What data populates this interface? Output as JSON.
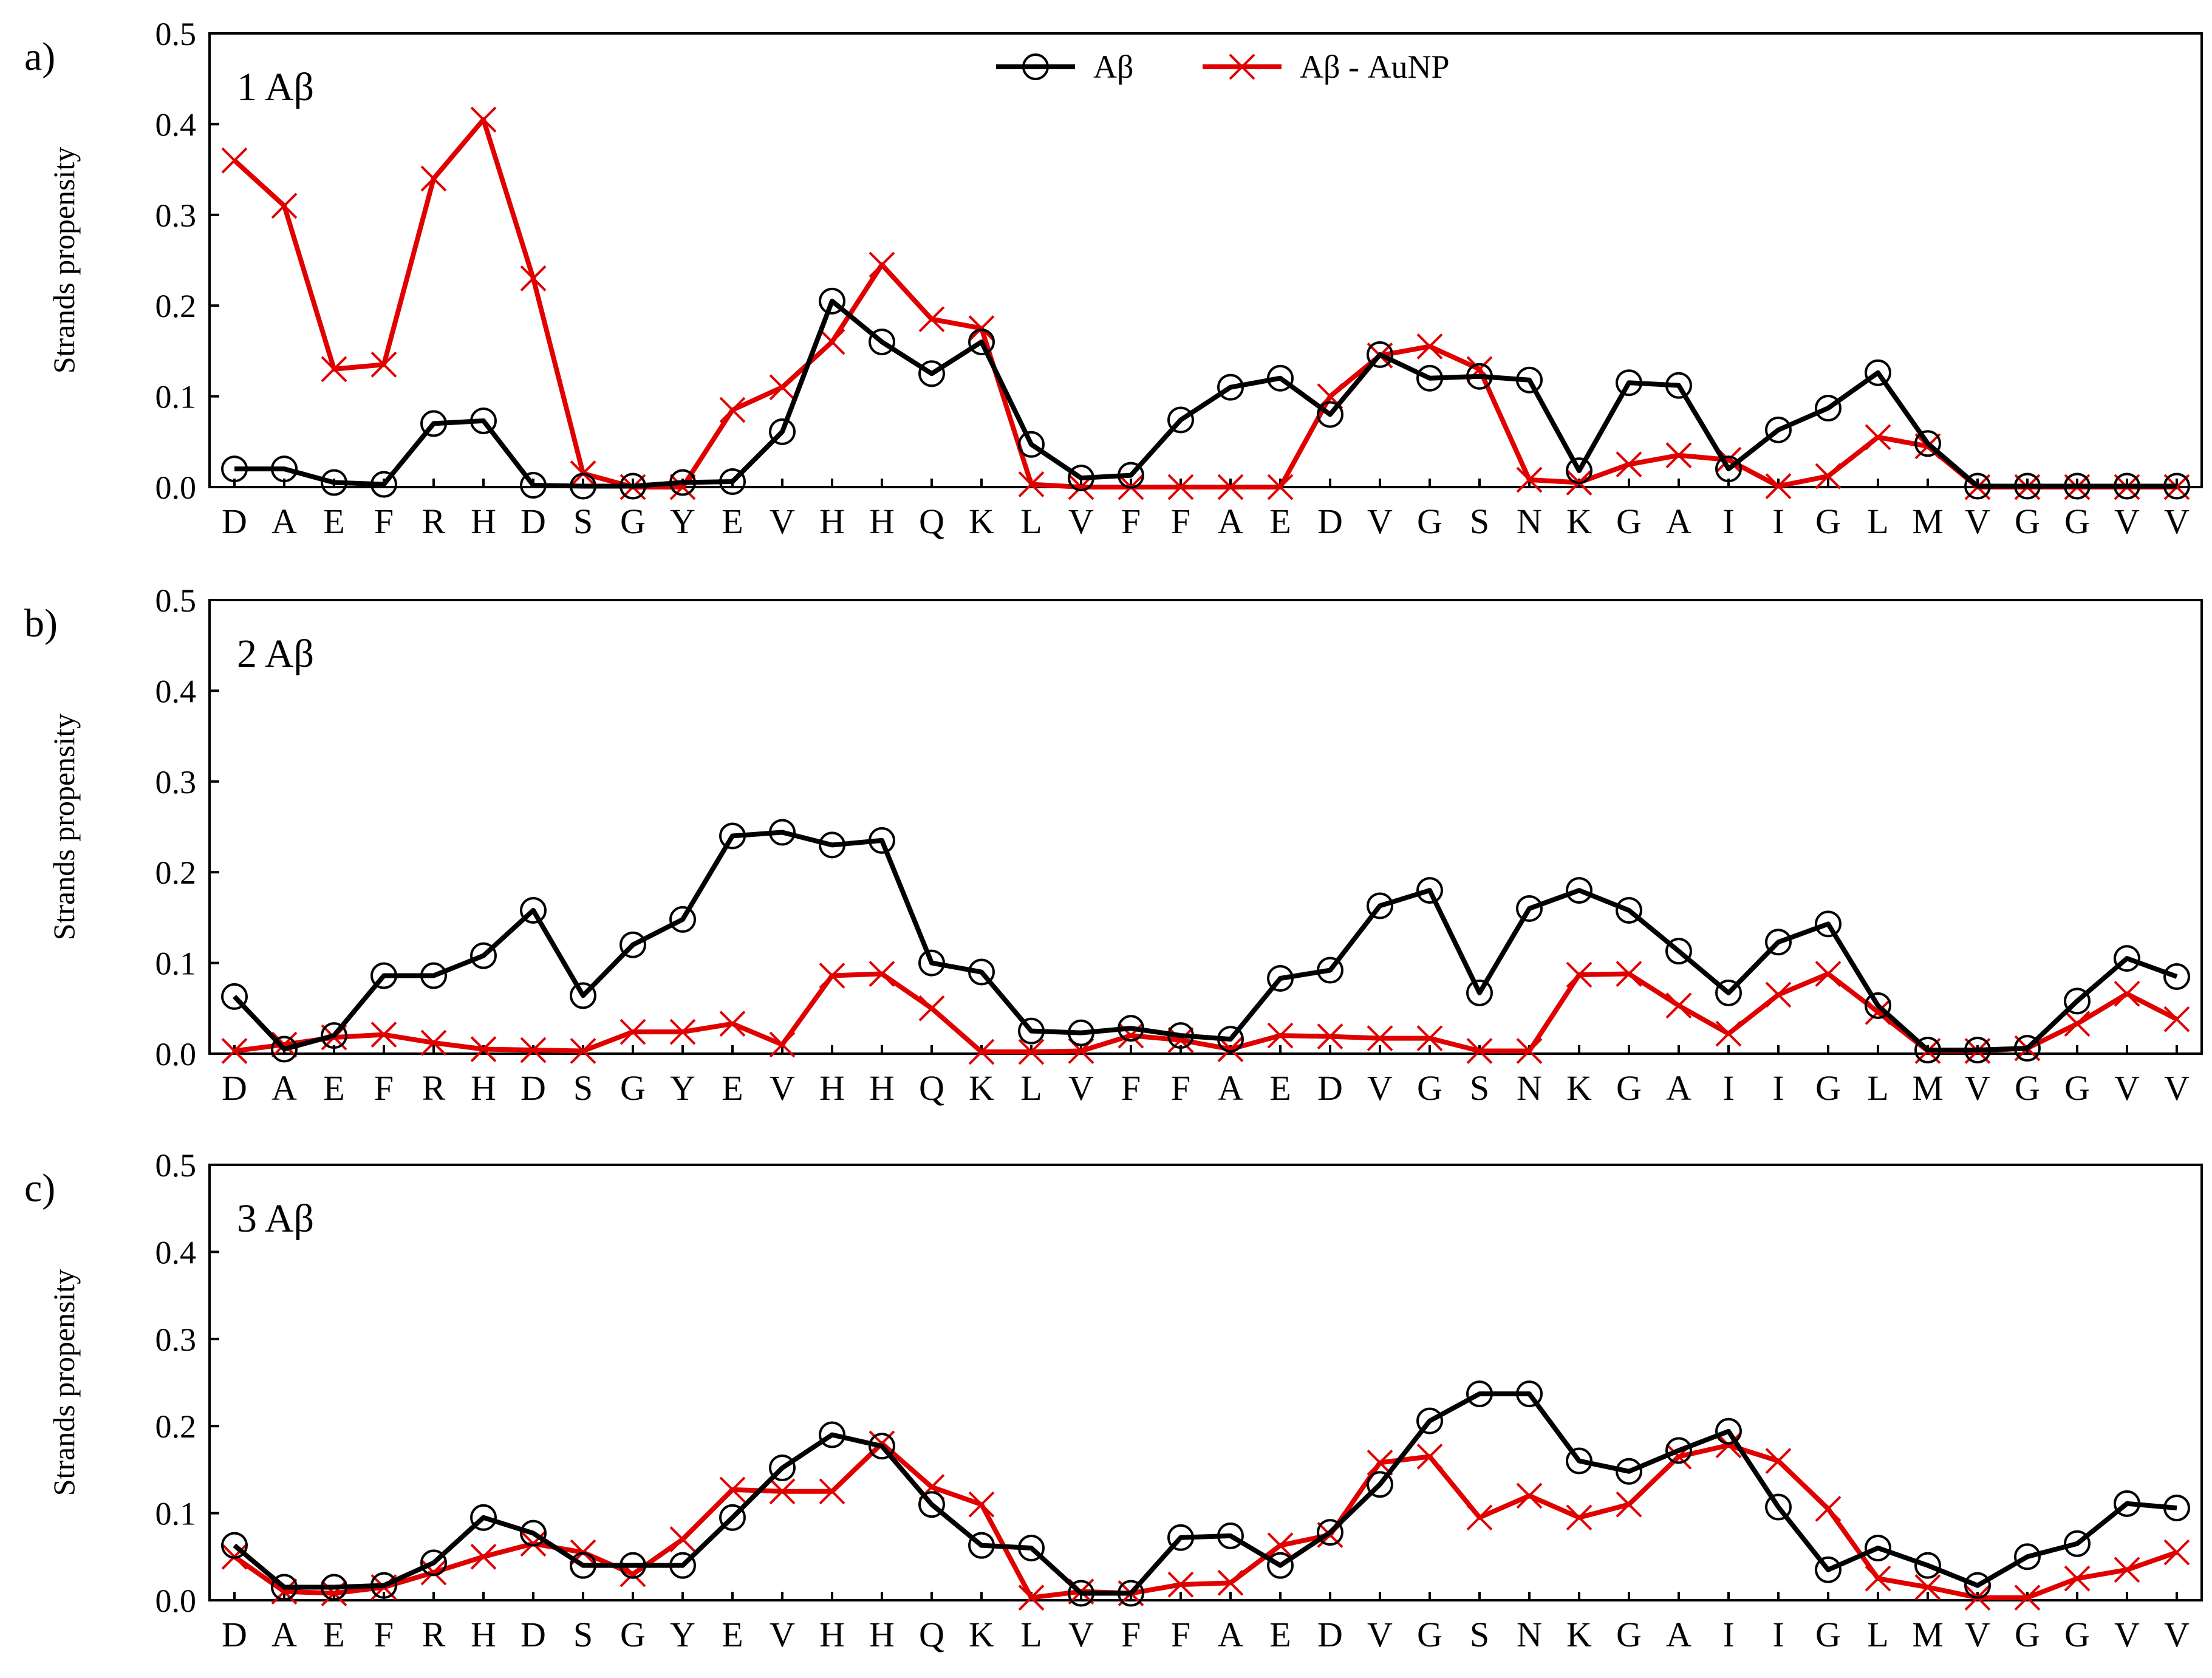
{
  "legend": {
    "series": [
      {
        "name": "Aβ",
        "color": "#000000",
        "marker": "circle"
      },
      {
        "name": "Aβ - AuNP",
        "color": "#e00000",
        "marker": "cross"
      }
    ]
  },
  "chart_data": [
    {
      "type": "line",
      "panel_label": "a)",
      "title": "1 Aβ",
      "ylabel": "Strands propensity",
      "ylim": [
        0,
        0.5
      ],
      "yticks": [
        "0.0",
        "0.1",
        "0.2",
        "0.3",
        "0.4",
        "0.5"
      ],
      "categories": [
        "D",
        "A",
        "E",
        "F",
        "R",
        "H",
        "D",
        "S",
        "G",
        "Y",
        "E",
        "V",
        "H",
        "H",
        "Q",
        "K",
        "L",
        "V",
        "F",
        "F",
        "A",
        "E",
        "D",
        "V",
        "G",
        "S",
        "N",
        "K",
        "G",
        "A",
        "I",
        "I",
        "G",
        "L",
        "M",
        "V",
        "G",
        "G",
        "V",
        "V"
      ],
      "series": [
        {
          "name": "Aβ",
          "color": "#000000",
          "values": [
            0.02,
            0.02,
            0.005,
            0.003,
            0.07,
            0.073,
            0.002,
            0.001,
            0.001,
            0.005,
            0.006,
            0.061,
            0.205,
            0.16,
            0.125,
            0.16,
            0.047,
            0.01,
            0.013,
            0.074,
            0.11,
            0.12,
            0.08,
            0.146,
            0.12,
            0.122,
            0.118,
            0.018,
            0.115,
            0.112,
            0.02,
            0.063,
            0.087,
            0.126,
            0.048,
            0.001,
            0.001,
            0.001,
            0.001,
            0.001
          ]
        },
        {
          "name": "Aβ - AuNP",
          "color": "#e00000",
          "values": [
            0.36,
            0.31,
            0.13,
            0.135,
            0.34,
            0.405,
            0.23,
            0.015,
            0.0,
            0.0,
            0.085,
            0.11,
            0.16,
            0.245,
            0.185,
            0.175,
            0.003,
            0.0,
            0.0,
            0.0,
            0.0,
            0.0,
            0.1,
            0.145,
            0.155,
            0.13,
            0.008,
            0.005,
            0.025,
            0.035,
            0.03,
            0.001,
            0.012,
            0.055,
            0.045,
            0.0,
            0.0,
            0.0,
            0.0,
            0.0
          ]
        }
      ]
    },
    {
      "type": "line",
      "panel_label": "b)",
      "title": "2 Aβ",
      "ylabel": "Strands propensity",
      "ylim": [
        0,
        0.5
      ],
      "yticks": [
        "0.0",
        "0.1",
        "0.2",
        "0.3",
        "0.4",
        "0.5"
      ],
      "categories": [
        "D",
        "A",
        "E",
        "F",
        "R",
        "H",
        "D",
        "S",
        "G",
        "Y",
        "E",
        "V",
        "H",
        "H",
        "Q",
        "K",
        "L",
        "V",
        "F",
        "F",
        "A",
        "E",
        "D",
        "V",
        "G",
        "S",
        "N",
        "K",
        "G",
        "A",
        "I",
        "I",
        "G",
        "L",
        "M",
        "V",
        "G",
        "G",
        "V",
        "V"
      ],
      "series": [
        {
          "name": "Aβ",
          "color": "#000000",
          "values": [
            0.063,
            0.005,
            0.02,
            0.086,
            0.086,
            0.108,
            0.158,
            0.064,
            0.12,
            0.148,
            0.24,
            0.244,
            0.23,
            0.235,
            0.1,
            0.09,
            0.025,
            0.023,
            0.028,
            0.02,
            0.016,
            0.083,
            0.092,
            0.163,
            0.18,
            0.067,
            0.16,
            0.18,
            0.158,
            0.113,
            0.067,
            0.123,
            0.143,
            0.053,
            0.004,
            0.004,
            0.006,
            0.058,
            0.105,
            0.085
          ]
        },
        {
          "name": "Aβ - AuNP",
          "color": "#e00000",
          "values": [
            0.003,
            0.01,
            0.018,
            0.021,
            0.012,
            0.005,
            0.004,
            0.003,
            0.024,
            0.024,
            0.033,
            0.01,
            0.086,
            0.088,
            0.05,
            0.002,
            0.002,
            0.003,
            0.02,
            0.015,
            0.005,
            0.02,
            0.019,
            0.017,
            0.017,
            0.003,
            0.003,
            0.087,
            0.088,
            0.053,
            0.022,
            0.065,
            0.088,
            0.046,
            0.003,
            0.003,
            0.006,
            0.033,
            0.066,
            0.038
          ]
        }
      ]
    },
    {
      "type": "line",
      "panel_label": "c)",
      "title": "3 Aβ",
      "ylabel": "Strands propensity",
      "ylim": [
        0,
        0.5
      ],
      "yticks": [
        "0.0",
        "0.1",
        "0.2",
        "0.3",
        "0.4",
        "0.5"
      ],
      "categories": [
        "D",
        "A",
        "E",
        "F",
        "R",
        "H",
        "D",
        "S",
        "G",
        "Y",
        "E",
        "V",
        "H",
        "H",
        "Q",
        "K",
        "L",
        "V",
        "F",
        "F",
        "A",
        "E",
        "D",
        "V",
        "G",
        "S",
        "N",
        "K",
        "G",
        "A",
        "I",
        "I",
        "G",
        "L",
        "M",
        "V",
        "G",
        "G",
        "V",
        "V"
      ],
      "series": [
        {
          "name": "Aβ",
          "color": "#000000",
          "values": [
            0.063,
            0.015,
            0.015,
            0.017,
            0.043,
            0.095,
            0.077,
            0.04,
            0.04,
            0.04,
            0.095,
            0.152,
            0.19,
            0.177,
            0.11,
            0.063,
            0.06,
            0.008,
            0.008,
            0.072,
            0.074,
            0.04,
            0.078,
            0.133,
            0.206,
            0.237,
            0.237,
            0.16,
            0.148,
            0.172,
            0.194,
            0.107,
            0.035,
            0.06,
            0.04,
            0.017,
            0.05,
            0.065,
            0.111,
            0.106
          ]
        },
        {
          "name": "Aβ - AuNP",
          "color": "#e00000",
          "values": [
            0.05,
            0.01,
            0.008,
            0.015,
            0.032,
            0.05,
            0.065,
            0.055,
            0.03,
            0.07,
            0.127,
            0.125,
            0.125,
            0.18,
            0.13,
            0.11,
            0.003,
            0.01,
            0.008,
            0.018,
            0.02,
            0.063,
            0.075,
            0.158,
            0.165,
            0.095,
            0.12,
            0.095,
            0.11,
            0.165,
            0.178,
            0.16,
            0.105,
            0.025,
            0.015,
            0.003,
            0.003,
            0.025,
            0.035,
            0.055
          ]
        }
      ]
    }
  ]
}
